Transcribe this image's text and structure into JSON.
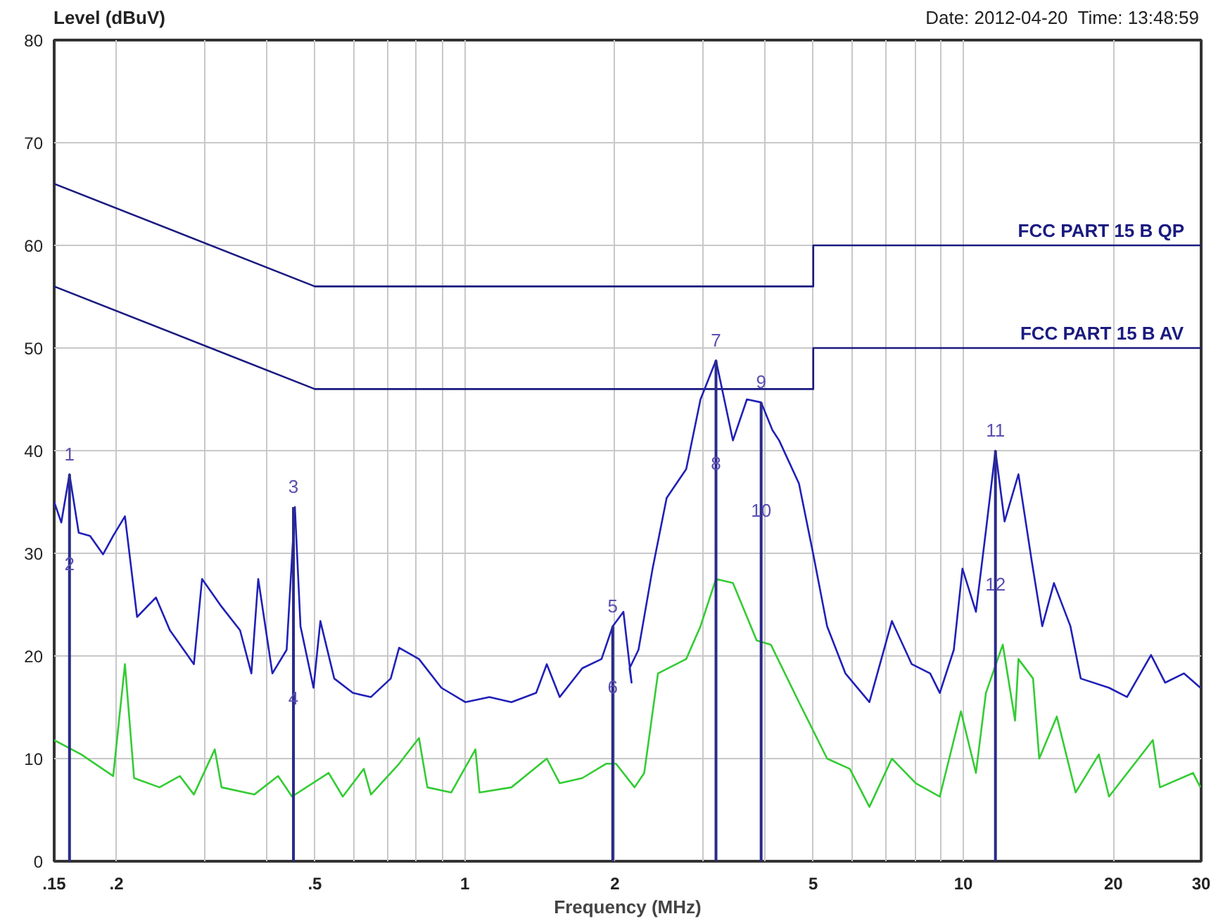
{
  "chart_data": {
    "type": "line",
    "xlabel": "Frequency (MHz)",
    "ylabel": "Level (dBuV)",
    "log": "x",
    "grid": true,
    "xlim": [
      0.15,
      30
    ],
    "ylim": [
      0,
      80
    ],
    "xticks": [
      {
        "value": 0.15,
        "label": ".15"
      },
      {
        "value": 0.2,
        "label": ".2"
      },
      {
        "value": 0.3,
        "label": null
      },
      {
        "value": 0.4,
        "label": null
      },
      {
        "value": 0.5,
        "label": ".5"
      },
      {
        "value": 0.6,
        "label": null
      },
      {
        "value": 0.7,
        "label": null
      },
      {
        "value": 0.8,
        "label": null
      },
      {
        "value": 0.9,
        "label": null
      },
      1,
      2,
      {
        "value": 3,
        "label": null
      },
      {
        "value": 4,
        "label": null
      },
      5,
      {
        "value": 6,
        "label": null
      },
      {
        "value": 7,
        "label": null
      },
      {
        "value": 8,
        "label": null
      },
      {
        "value": 9,
        "label": null
      },
      10,
      20,
      30
    ],
    "yticks": [
      0,
      10,
      20,
      30,
      40,
      50,
      60,
      70,
      80
    ],
    "series": [
      {
        "name": "FCC PART 15 B QP",
        "color": "#1a1a80",
        "x": [
          0.15,
          0.5,
          5,
          5,
          30
        ],
        "values": [
          66,
          56,
          56,
          60,
          60
        ]
      },
      {
        "name": "FCC PART 15 B AV",
        "color": "#1a1a80",
        "x": [
          0.15,
          0.5,
          5,
          5,
          30
        ],
        "values": [
          56,
          46,
          46,
          50,
          50
        ]
      },
      {
        "type": "line",
        "color": "#2020b8",
        "x": [
          0.15,
          0.155,
          0.161,
          0.168,
          0.177,
          0.188,
          0.197,
          0.208,
          0.22,
          0.24,
          0.256,
          0.286,
          0.297,
          0.325,
          0.354,
          0.373,
          0.385,
          0.411,
          0.439,
          0.456,
          0.468,
          0.497,
          0.513,
          0.547,
          0.596,
          0.648,
          0.71,
          0.738,
          0.809,
          0.897,
          1.002,
          1.12,
          1.24,
          1.39,
          1.46,
          1.55,
          1.72,
          1.88,
          1.98,
          2.08,
          2.16,
          2.14,
          2.23,
          2.38,
          2.54,
          2.78,
          2.97,
          3.19,
          3.45,
          3.68,
          3.93,
          4.14,
          4.27,
          4.68,
          5.0,
          5.33,
          5.8,
          6.48,
          7.19,
          7.88,
          8.58,
          8.97,
          9.57,
          9.96,
          10.6,
          11.1,
          11.6,
          12.1,
          12.9,
          13.7,
          14.4,
          15.2,
          16.4,
          17.2,
          19.6,
          21.3,
          23.8,
          25.4,
          27.7,
          29.9
        ],
        "values": [
          35,
          33,
          37.7,
          32,
          31.7,
          29.9,
          31.7,
          33.6,
          23.8,
          25.7,
          22.5,
          19.2,
          27.5,
          24.8,
          22.5,
          18.3,
          27.5,
          18.3,
          20.6,
          34.5,
          22.9,
          16.9,
          23.4,
          17.8,
          16.4,
          16,
          17.8,
          20.8,
          19.7,
          16.9,
          15.5,
          16,
          15.5,
          16.4,
          19.2,
          16,
          18.8,
          19.7,
          22.9,
          24.3,
          17.4,
          18.8,
          20.6,
          28.5,
          35.4,
          38.2,
          45,
          48.8,
          41,
          45,
          44.7,
          42,
          41,
          36.8,
          29.9,
          22.9,
          18.3,
          15.5,
          23.4,
          19.2,
          18.3,
          16.4,
          20.6,
          28.5,
          24.3,
          32.2,
          40,
          33.1,
          37.7,
          29.4,
          22.9,
          27.1,
          22.9,
          17.8,
          16.9,
          16,
          20.1,
          17.4,
          18.3,
          16.9
        ]
      },
      {
        "type": "line",
        "color": "#33cc33",
        "x": [
          0.15,
          0.17,
          0.197,
          0.208,
          0.217,
          0.244,
          0.268,
          0.286,
          0.315,
          0.325,
          0.378,
          0.422,
          0.45,
          0.533,
          0.569,
          0.627,
          0.648,
          0.738,
          0.809,
          0.841,
          0.939,
          1.05,
          1.07,
          1.24,
          1.46,
          1.55,
          1.72,
          1.92,
          2.01,
          2.19,
          2.29,
          2.44,
          2.78,
          2.97,
          3.19,
          3.45,
          3.85,
          4.11,
          4.68,
          5.33,
          5.92,
          6.48,
          7.19,
          8.03,
          8.97,
          9.89,
          10.6,
          11.1,
          12.0,
          12.7,
          12.9,
          13.8,
          14.2,
          15.4,
          16.8,
          18.7,
          19.6,
          24.0,
          24.8,
          28.9,
          29.9
        ],
        "values": [
          11.8,
          10.4,
          8.3,
          19.2,
          8.1,
          7.2,
          8.3,
          6.5,
          10.9,
          7.2,
          6.5,
          8.3,
          6.3,
          8.6,
          6.3,
          9,
          6.5,
          9.5,
          12,
          7.2,
          6.7,
          10.9,
          6.7,
          7.2,
          10,
          7.6,
          8.1,
          9.5,
          9.5,
          7.2,
          8.6,
          18.3,
          19.7,
          22.9,
          27.5,
          27.1,
          21.5,
          21.1,
          15.5,
          10,
          9,
          5.3,
          10,
          7.6,
          6.3,
          14.6,
          8.6,
          16.4,
          21.1,
          13.7,
          19.7,
          17.8,
          10,
          14.1,
          6.7,
          10.4,
          6.3,
          11.8,
          7.2,
          8.6,
          7.2
        ]
      },
      {
        "type": "bar",
        "color": "#2a2a8a",
        "x": [
          0.161,
          0.453,
          1.98,
          3.19,
          3.93,
          11.6
        ],
        "values": [
          37.7,
          34.5,
          22.9,
          48.8,
          44.7,
          40
        ]
      }
    ],
    "annotations": [
      "Date: 2012-04-20  Time: 13:48:59",
      {
        "text": "1",
        "x": 0.161,
        "y": 37.7
      },
      {
        "text": "2",
        "x": 0.161,
        "y": 27
      },
      {
        "text": "3",
        "x": 0.453,
        "y": 34.5
      },
      {
        "text": "4",
        "x": 0.453,
        "y": 13.9
      },
      {
        "text": "5",
        "x": 1.98,
        "y": 22.9
      },
      {
        "text": "6",
        "x": 1.98,
        "y": 15
      },
      {
        "text": "7",
        "x": 3.19,
        "y": 48.8
      },
      {
        "text": "8",
        "x": 3.19,
        "y": 36.8
      },
      {
        "text": "9",
        "x": 3.93,
        "y": 44.7
      },
      {
        "text": "10",
        "x": 3.93,
        "y": 32.2
      },
      {
        "text": "11",
        "x": 11.6,
        "y": 40
      },
      {
        "text": "12",
        "x": 11.6,
        "y": 25
      }
    ]
  }
}
